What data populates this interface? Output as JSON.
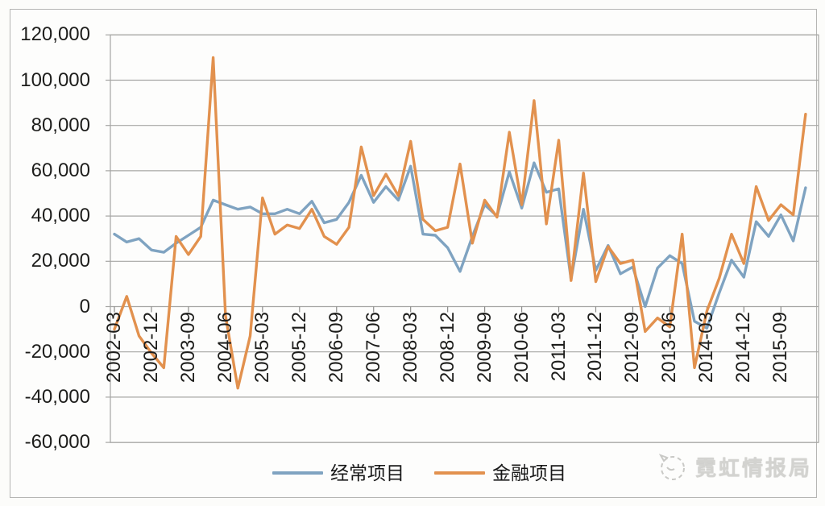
{
  "watermark": {
    "text": "霓虹情报局"
  },
  "chart_data": {
    "type": "line",
    "title": "",
    "xlabel": "",
    "ylabel": "",
    "x_unit": "quarter",
    "x_start": "2002-03",
    "x_points": 57,
    "x_tick_every": 3,
    "x_tick_labels": [
      "2002-03",
      "2002-12",
      "2003-09",
      "2004-06",
      "2005-03",
      "2005-12",
      "2006-09",
      "2007-06",
      "2008-03",
      "2008-12",
      "2009-09",
      "2010-06",
      "2011-03",
      "2011-12",
      "2012-09",
      "2013-06",
      "2014-03",
      "2014-12",
      "2015-09"
    ],
    "ylim": [
      -60000,
      120000
    ],
    "y_tick_step": 20000,
    "y_tick_labels": [
      "120,000",
      "100,000",
      "80,000",
      "60,000",
      "40,000",
      "20,000",
      "0",
      "-20,000",
      "-40,000",
      "-60,000"
    ],
    "grid": true,
    "legend_position": "bottom",
    "colors": {
      "grid": "#a6a6a4",
      "axis_text": "#1d1d1b"
    },
    "series": [
      {
        "name": "经常项目",
        "color": "#7FA3C1",
        "values": [
          32000,
          28500,
          30000,
          25000,
          24000,
          28000,
          31500,
          35000,
          47000,
          45000,
          43000,
          44000,
          41000,
          41000,
          43000,
          41000,
          46500,
          37000,
          38500,
          46000,
          58000,
          46000,
          53000,
          47000,
          62000,
          32000,
          31500,
          26000,
          15500,
          31000,
          45000,
          40000,
          59500,
          43500,
          63500,
          50500,
          52000,
          12000,
          43000,
          16000,
          27000,
          14500,
          17500,
          0,
          17000,
          22500,
          19000,
          -6500,
          -9500,
          6000,
          20500,
          13000,
          37500,
          31000,
          40500,
          29000,
          52500
        ]
      },
      {
        "name": "金融项目",
        "color": "#E2914E",
        "values": [
          -10000,
          4500,
          -13000,
          -20500,
          -27000,
          31000,
          23000,
          31000,
          110000,
          -4000,
          -36000,
          -13000,
          48000,
          32000,
          36000,
          34500,
          43000,
          31000,
          27500,
          35000,
          70500,
          49000,
          58500,
          49000,
          73000,
          38500,
          33500,
          35000,
          63000,
          28000,
          47000,
          39500,
          77000,
          45000,
          91000,
          36500,
          73500,
          11500,
          59000,
          11000,
          26500,
          19000,
          20500,
          -11000,
          -5000,
          -9000,
          32000,
          -27000,
          -2000,
          12500,
          32000,
          19000,
          53000,
          38000,
          45000,
          40500,
          85000
        ]
      }
    ]
  }
}
